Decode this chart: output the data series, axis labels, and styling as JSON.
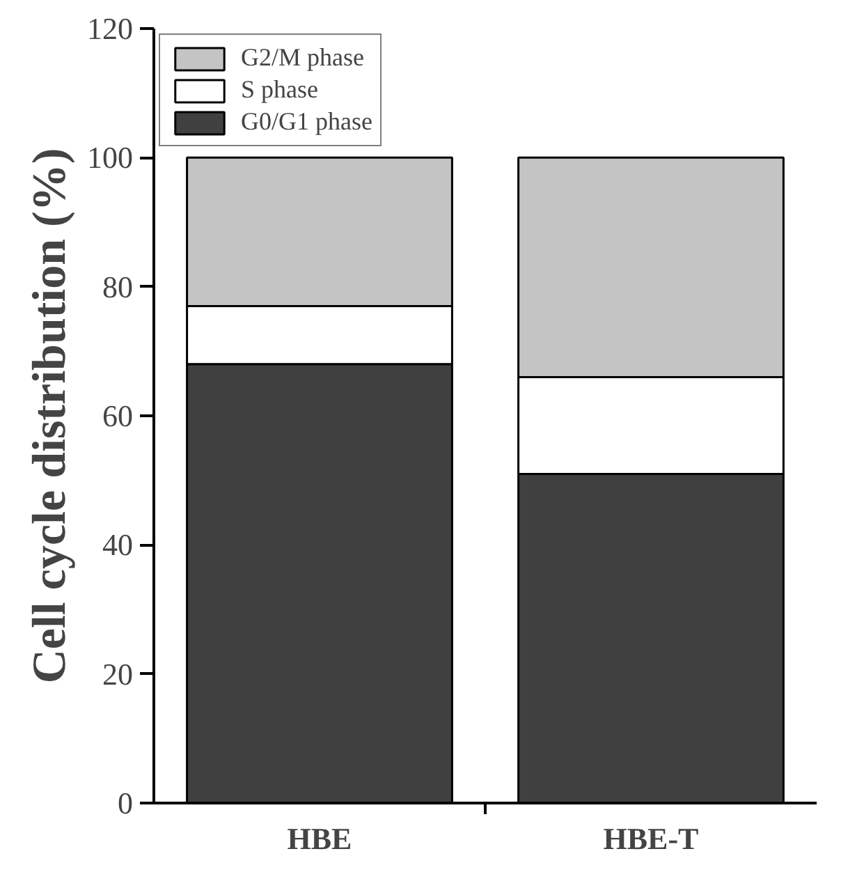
{
  "chart_data": {
    "type": "bar",
    "stacked": true,
    "ylabel": "Cell cycle distribution (%)",
    "categories": [
      "HBE",
      "HBE-T"
    ],
    "series": [
      {
        "name": "G0/G1 phase",
        "color": "#404040",
        "values": [
          68,
          51
        ]
      },
      {
        "name": "S phase",
        "color": "#ffffff",
        "values": [
          9,
          15
        ]
      },
      {
        "name": "G2/M phase",
        "color": "#c4c4c4",
        "values": [
          23,
          34
        ]
      }
    ],
    "ylim": [
      0,
      120
    ],
    "yticks": [
      0,
      20,
      40,
      60,
      80,
      100,
      120
    ],
    "grid": false,
    "legend": "top left"
  }
}
